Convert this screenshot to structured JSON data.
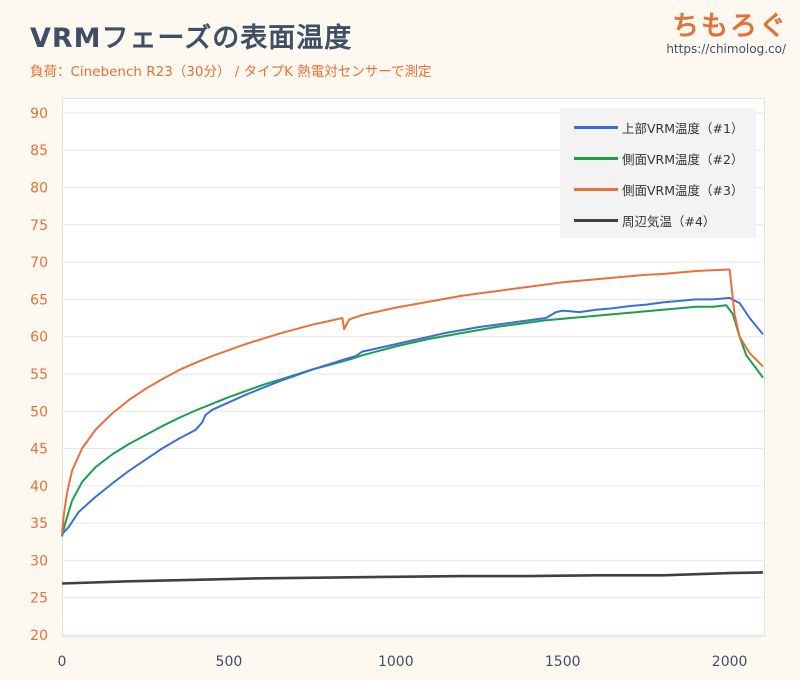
{
  "header": {
    "title": "VRMフェーズの表面温度",
    "subtitle": "負荷：Cinebench R23（30分） / タイプK 熱電対センサーで測定",
    "brand": "ちもろぐ",
    "brand_url": "https://chimolog.co/"
  },
  "chart_data": {
    "type": "line",
    "title": "VRMフェーズの表面温度",
    "subtitle": "負荷：Cinebench R23（30分） / タイプK 熱電対センサーで測定",
    "xlabel": "",
    "ylabel": "",
    "xlim": [
      0,
      2100
    ],
    "ylim": [
      20,
      92
    ],
    "xticks": [
      0,
      500,
      1000,
      1500,
      2000
    ],
    "yticks": [
      20,
      25,
      30,
      35,
      40,
      45,
      50,
      55,
      60,
      65,
      70,
      75,
      80,
      85,
      90
    ],
    "grid": "horizontal",
    "legend": "top-right",
    "series": [
      {
        "name": "上部VRM温度（#1）",
        "color": "#3b6fd8",
        "points": [
          [
            0,
            33.5
          ],
          [
            20,
            34.5
          ],
          [
            50,
            36.5
          ],
          [
            100,
            38.5
          ],
          [
            150,
            40.3
          ],
          [
            200,
            42
          ],
          [
            250,
            43.5
          ],
          [
            300,
            45
          ],
          [
            350,
            46.3
          ],
          [
            400,
            47.5
          ],
          [
            420,
            48.5
          ],
          [
            430,
            49.5
          ],
          [
            450,
            50.2
          ],
          [
            500,
            51.2
          ],
          [
            550,
            52.2
          ],
          [
            600,
            53.1
          ],
          [
            650,
            54
          ],
          [
            700,
            54.8
          ],
          [
            750,
            55.6
          ],
          [
            800,
            56.3
          ],
          [
            850,
            57
          ],
          [
            880,
            57.4
          ],
          [
            900,
            58
          ],
          [
            950,
            58.5
          ],
          [
            1000,
            59
          ],
          [
            1050,
            59.5
          ],
          [
            1100,
            60
          ],
          [
            1150,
            60.5
          ],
          [
            1200,
            60.9
          ],
          [
            1250,
            61.3
          ],
          [
            1300,
            61.6
          ],
          [
            1350,
            61.9
          ],
          [
            1400,
            62.2
          ],
          [
            1450,
            62.5
          ],
          [
            1480,
            63.3
          ],
          [
            1500,
            63.5
          ],
          [
            1550,
            63.3
          ],
          [
            1600,
            63.6
          ],
          [
            1650,
            63.8
          ],
          [
            1700,
            64.1
          ],
          [
            1750,
            64.3
          ],
          [
            1800,
            64.6
          ],
          [
            1850,
            64.8
          ],
          [
            1900,
            65
          ],
          [
            1950,
            65
          ],
          [
            2000,
            65.2
          ],
          [
            2030,
            64.5
          ],
          [
            2060,
            62.5
          ],
          [
            2100,
            60.3
          ]
        ]
      },
      {
        "name": "側面VRM温度（#2）",
        "color": "#19a049",
        "points": [
          [
            0,
            33.2
          ],
          [
            10,
            35
          ],
          [
            30,
            38
          ],
          [
            60,
            40.5
          ],
          [
            100,
            42.5
          ],
          [
            150,
            44.2
          ],
          [
            200,
            45.6
          ],
          [
            250,
            46.8
          ],
          [
            300,
            48
          ],
          [
            350,
            49.1
          ],
          [
            400,
            50.1
          ],
          [
            450,
            51
          ],
          [
            500,
            51.9
          ],
          [
            550,
            52.7
          ],
          [
            600,
            53.5
          ],
          [
            650,
            54.2
          ],
          [
            700,
            54.9
          ],
          [
            750,
            55.6
          ],
          [
            800,
            56.2
          ],
          [
            850,
            56.8
          ],
          [
            880,
            57.2
          ],
          [
            900,
            57.5
          ],
          [
            950,
            58.1
          ],
          [
            1000,
            58.7
          ],
          [
            1050,
            59.2
          ],
          [
            1100,
            59.7
          ],
          [
            1150,
            60.1
          ],
          [
            1200,
            60.5
          ],
          [
            1250,
            60.9
          ],
          [
            1300,
            61.3
          ],
          [
            1350,
            61.6
          ],
          [
            1400,
            61.9
          ],
          [
            1450,
            62.2
          ],
          [
            1500,
            62.4
          ],
          [
            1550,
            62.6
          ],
          [
            1600,
            62.8
          ],
          [
            1650,
            63
          ],
          [
            1700,
            63.2
          ],
          [
            1750,
            63.4
          ],
          [
            1800,
            63.6
          ],
          [
            1850,
            63.8
          ],
          [
            1900,
            64
          ],
          [
            1950,
            64
          ],
          [
            1990,
            64.2
          ],
          [
            2010,
            63
          ],
          [
            2030,
            60
          ],
          [
            2050,
            57.5
          ],
          [
            2075,
            56
          ],
          [
            2100,
            54.5
          ]
        ]
      },
      {
        "name": "側面VRM温度（#3）",
        "color": "#e8703a",
        "points": [
          [
            0,
            33.5
          ],
          [
            5,
            36
          ],
          [
            15,
            39
          ],
          [
            30,
            42
          ],
          [
            60,
            45
          ],
          [
            100,
            47.5
          ],
          [
            150,
            49.7
          ],
          [
            200,
            51.5
          ],
          [
            250,
            53
          ],
          [
            300,
            54.3
          ],
          [
            350,
            55.5
          ],
          [
            400,
            56.5
          ],
          [
            450,
            57.4
          ],
          [
            500,
            58.2
          ],
          [
            550,
            59
          ],
          [
            600,
            59.7
          ],
          [
            650,
            60.4
          ],
          [
            700,
            61
          ],
          [
            750,
            61.6
          ],
          [
            800,
            62.1
          ],
          [
            840,
            62.5
          ],
          [
            845,
            61
          ],
          [
            860,
            62.3
          ],
          [
            900,
            62.9
          ],
          [
            950,
            63.4
          ],
          [
            1000,
            63.9
          ],
          [
            1050,
            64.3
          ],
          [
            1100,
            64.7
          ],
          [
            1150,
            65.1
          ],
          [
            1200,
            65.5
          ],
          [
            1250,
            65.8
          ],
          [
            1300,
            66.1
          ],
          [
            1350,
            66.4
          ],
          [
            1400,
            66.7
          ],
          [
            1450,
            67
          ],
          [
            1500,
            67.3
          ],
          [
            1550,
            67.5
          ],
          [
            1600,
            67.7
          ],
          [
            1650,
            67.9
          ],
          [
            1700,
            68.1
          ],
          [
            1750,
            68.3
          ],
          [
            1800,
            68.4
          ],
          [
            1850,
            68.6
          ],
          [
            1900,
            68.8
          ],
          [
            1950,
            68.9
          ],
          [
            2000,
            69
          ],
          [
            2005,
            67
          ],
          [
            2015,
            63
          ],
          [
            2030,
            60
          ],
          [
            2060,
            57.8
          ],
          [
            2100,
            56
          ]
        ]
      },
      {
        "name": "周辺気温（#4）",
        "color": "#404040",
        "points": [
          [
            0,
            26.9
          ],
          [
            200,
            27.2
          ],
          [
            400,
            27.4
          ],
          [
            600,
            27.6
          ],
          [
            800,
            27.7
          ],
          [
            1000,
            27.8
          ],
          [
            1200,
            27.9
          ],
          [
            1400,
            27.9
          ],
          [
            1600,
            28
          ],
          [
            1800,
            28
          ],
          [
            2000,
            28.3
          ],
          [
            2100,
            28.4
          ]
        ]
      }
    ]
  }
}
